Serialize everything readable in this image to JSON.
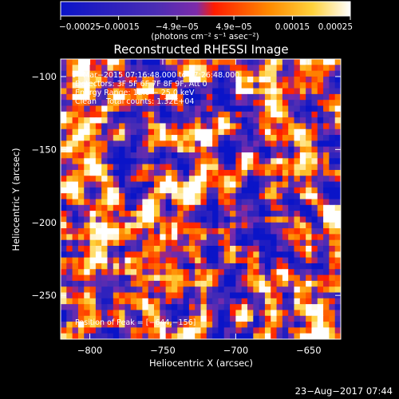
{
  "chart_data": {
    "type": "heatmap",
    "title": "Reconstructed RHESSI Image",
    "xlabel": "Heliocentric X (arcsec)",
    "ylabel": "Heliocentric Y (arcsec)",
    "xlim": [
      -820,
      -628
    ],
    "ylim": [
      -280,
      -88
    ],
    "x_ticks": [
      -800,
      -750,
      -700,
      -650
    ],
    "x_tick_labels": [
      "−800",
      "−750",
      "−700",
      "−650"
    ],
    "y_ticks": [
      -100,
      -150,
      -200,
      -250
    ],
    "y_tick_labels": [
      "−100",
      "−150",
      "−200",
      "−250"
    ],
    "colorbar": {
      "ticks": [
        -0.00025,
        -0.00015,
        -4.9e-05,
        4.9e-05,
        0.00015,
        0.00025
      ],
      "tick_labels": [
        "−0.00025",
        "−0.00015",
        "−4.9e−05",
        "4.9e−05",
        "0.00015",
        "0.00025"
      ],
      "unit_label": "(photons cm⁻² s⁻¹ asec⁻²)",
      "range": [
        -0.00025,
        0.00025
      ],
      "colors": [
        "#0a14c8",
        "#4b2db4",
        "#7d2baa",
        "#ff1c00",
        "#ff8a00",
        "#ffd23c",
        "#ffffff"
      ]
    },
    "annotations": [
      "9−Mar−2015 07:16:48.000 to 07:26:48.000",
      "Detectors: 3F 5F 6F 7F 8F 9F, Att 0",
      "Energy Range: 12.0 − 25.0 keV",
      "Clean    Total counts: 1.32E+04"
    ],
    "peak_label": "Position of Peak = [−644,−156]",
    "peak_position": [
      -644,
      -156
    ],
    "grid": false
  },
  "footer": {
    "timestamp": "23−Aug−2017 07:44"
  }
}
